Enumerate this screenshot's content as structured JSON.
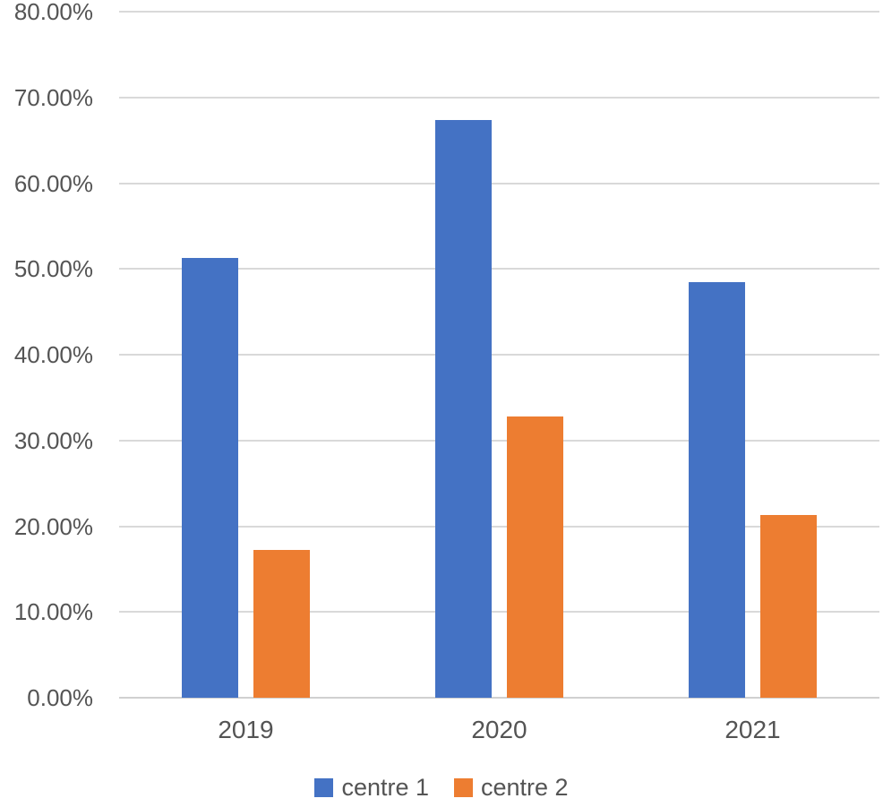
{
  "chart_data": {
    "type": "bar",
    "title": "",
    "xlabel": "",
    "ylabel": "",
    "categories": [
      "2019",
      "2020",
      "2021"
    ],
    "series": [
      {
        "name": "centre 1",
        "color": "#4472C4",
        "values": [
          51.3,
          67.4,
          48.5
        ]
      },
      {
        "name": "centre 2",
        "color": "#ED7D31",
        "values": [
          17.2,
          32.8,
          21.3
        ]
      }
    ],
    "ylim": [
      0,
      80
    ],
    "ytick_step": 10,
    "yticks": [
      {
        "value": 0,
        "label": "0.00%"
      },
      {
        "value": 10,
        "label": "10.00%"
      },
      {
        "value": 20,
        "label": "20.00%"
      },
      {
        "value": 30,
        "label": "30.00%"
      },
      {
        "value": 40,
        "label": "40.00%"
      },
      {
        "value": 50,
        "label": "50.00%"
      },
      {
        "value": 60,
        "label": "60.00%"
      },
      {
        "value": 70,
        "label": "70.00%"
      },
      {
        "value": 80,
        "label": "80.00%"
      }
    ],
    "grid": true,
    "legend_position": "bottom",
    "colors": {
      "gridline": "#D9D9D9",
      "baseline": "#D0D0D0",
      "axis_text": "#545454",
      "background": "#FFFFFF"
    }
  }
}
